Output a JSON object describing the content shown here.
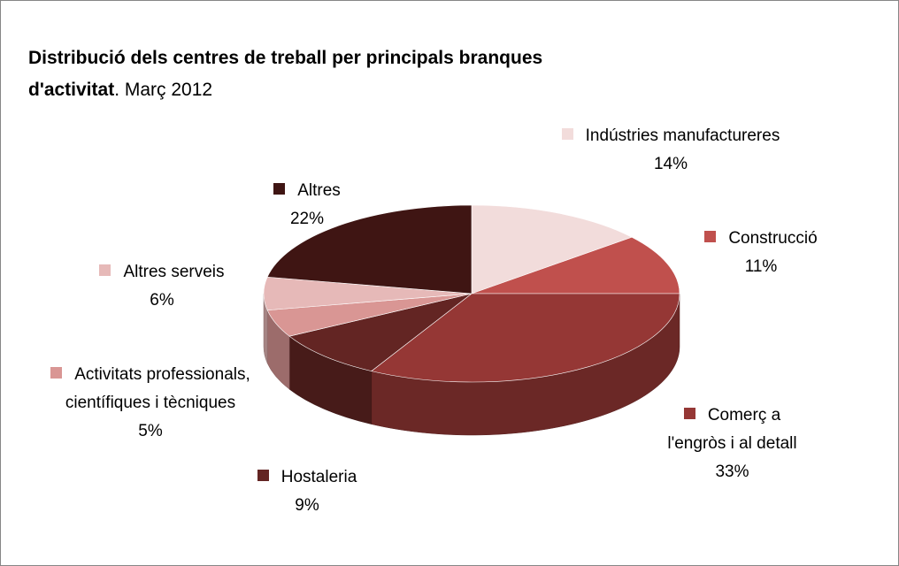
{
  "chart_data": {
    "type": "pie",
    "title": "Distribució dels centres de treball  per principals branques d'activitat",
    "subtitle": ". Març 2012",
    "categories": [
      "Indústries manufactureres",
      "Construcció",
      "Comerç a l'engròs i al detall",
      "Hostaleria",
      "Activitats professionals, científiques i tècniques",
      "Altres serveis",
      "Altres"
    ],
    "values": [
      14,
      11,
      33,
      9,
      5,
      6,
      22
    ],
    "value_labels": [
      "14%",
      "11%",
      "33%",
      "9%",
      "5%",
      "6%",
      "22%"
    ],
    "colors": [
      "#f2dcdb",
      "#c0504d",
      "#953735",
      "#632523",
      "#d99694",
      "#e6b9b8",
      "#3f1513"
    ]
  }
}
